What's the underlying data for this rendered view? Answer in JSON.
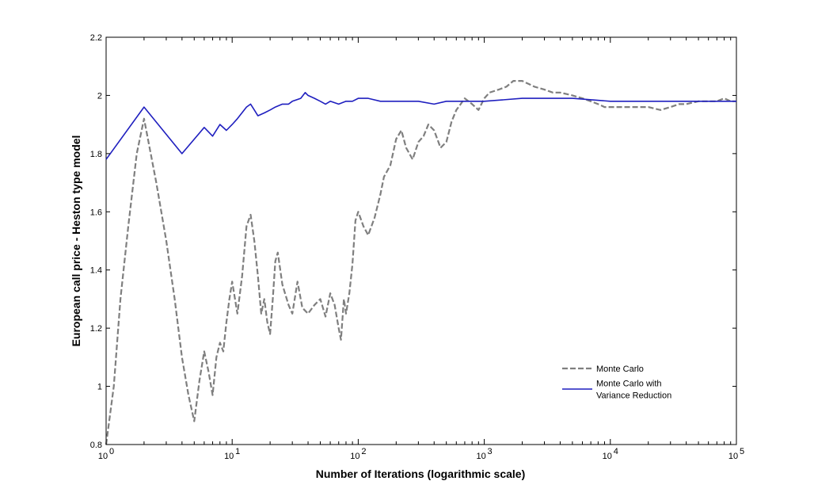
{
  "chart_data": {
    "type": "line",
    "title": "",
    "xlabel": "Number of Iterations (logarithmic scale)",
    "ylabel": "European call price - Heston type model",
    "xscale": "log",
    "xlim": [
      1,
      100000
    ],
    "ylim": [
      0.8,
      2.2
    ],
    "grid": false,
    "legend_position": "lower-right",
    "x_ticks": [
      {
        "value": 1,
        "base": "10",
        "exp": "0"
      },
      {
        "value": 10,
        "base": "10",
        "exp": "1"
      },
      {
        "value": 100,
        "base": "10",
        "exp": "2"
      },
      {
        "value": 1000,
        "base": "10",
        "exp": "3"
      },
      {
        "value": 10000,
        "base": "10",
        "exp": "4"
      },
      {
        "value": 100000,
        "base": "10",
        "exp": "5"
      }
    ],
    "y_ticks": [
      {
        "value": 0.8,
        "label": "0.8"
      },
      {
        "value": 1.0,
        "label": "1"
      },
      {
        "value": 1.2,
        "label": "1.2"
      },
      {
        "value": 1.4,
        "label": "1.4"
      },
      {
        "value": 1.6,
        "label": "1.6"
      },
      {
        "value": 1.8,
        "label": "1.8"
      },
      {
        "value": 2.0,
        "label": "2"
      },
      {
        "value": 2.2,
        "label": "2.2"
      }
    ],
    "series": [
      {
        "name": "Monte Carlo",
        "legend_lines": [
          "Monte Carlo"
        ],
        "color": "#7f7f7f",
        "style": "dashed",
        "points": [
          [
            1,
            0.8
          ],
          [
            1.15,
            1.0
          ],
          [
            1.3,
            1.3
          ],
          [
            1.5,
            1.55
          ],
          [
            1.75,
            1.8
          ],
          [
            2,
            1.92
          ],
          [
            2.5,
            1.7
          ],
          [
            3,
            1.5
          ],
          [
            3.5,
            1.3
          ],
          [
            4,
            1.1
          ],
          [
            4.5,
            0.97
          ],
          [
            5,
            0.88
          ],
          [
            5.5,
            1.02
          ],
          [
            6,
            1.12
          ],
          [
            6.5,
            1.05
          ],
          [
            7,
            0.97
          ],
          [
            7.5,
            1.1
          ],
          [
            8,
            1.15
          ],
          [
            8.5,
            1.12
          ],
          [
            9,
            1.22
          ],
          [
            9.5,
            1.3
          ],
          [
            10,
            1.36
          ],
          [
            11,
            1.25
          ],
          [
            12,
            1.38
          ],
          [
            13,
            1.55
          ],
          [
            14,
            1.59
          ],
          [
            15,
            1.5
          ],
          [
            16,
            1.38
          ],
          [
            17,
            1.25
          ],
          [
            18,
            1.3
          ],
          [
            19,
            1.22
          ],
          [
            20,
            1.18
          ],
          [
            21,
            1.3
          ],
          [
            22,
            1.43
          ],
          [
            23,
            1.46
          ],
          [
            25,
            1.35
          ],
          [
            28,
            1.28
          ],
          [
            30,
            1.25
          ],
          [
            33,
            1.36
          ],
          [
            36,
            1.27
          ],
          [
            40,
            1.25
          ],
          [
            45,
            1.28
          ],
          [
            50,
            1.3
          ],
          [
            55,
            1.24
          ],
          [
            60,
            1.32
          ],
          [
            65,
            1.28
          ],
          [
            70,
            1.2
          ],
          [
            73,
            1.16
          ],
          [
            77,
            1.3
          ],
          [
            80,
            1.25
          ],
          [
            85,
            1.32
          ],
          [
            90,
            1.42
          ],
          [
            95,
            1.57
          ],
          [
            100,
            1.6
          ],
          [
            110,
            1.55
          ],
          [
            120,
            1.52
          ],
          [
            135,
            1.58
          ],
          [
            150,
            1.66
          ],
          [
            160,
            1.72
          ],
          [
            180,
            1.76
          ],
          [
            200,
            1.85
          ],
          [
            220,
            1.88
          ],
          [
            240,
            1.82
          ],
          [
            270,
            1.78
          ],
          [
            300,
            1.84
          ],
          [
            330,
            1.86
          ],
          [
            360,
            1.9
          ],
          [
            400,
            1.88
          ],
          [
            450,
            1.82
          ],
          [
            500,
            1.84
          ],
          [
            550,
            1.91
          ],
          [
            600,
            1.95
          ],
          [
            650,
            1.97
          ],
          [
            700,
            1.99
          ],
          [
            800,
            1.97
          ],
          [
            900,
            1.95
          ],
          [
            1000,
            1.99
          ],
          [
            1100,
            2.01
          ],
          [
            1300,
            2.02
          ],
          [
            1500,
            2.03
          ],
          [
            1700,
            2.05
          ],
          [
            2000,
            2.05
          ],
          [
            2500,
            2.03
          ],
          [
            3000,
            2.02
          ],
          [
            3500,
            2.01
          ],
          [
            4000,
            2.01
          ],
          [
            5000,
            2.0
          ],
          [
            6000,
            1.99
          ],
          [
            7000,
            1.98
          ],
          [
            8000,
            1.97
          ],
          [
            9000,
            1.96
          ],
          [
            10000,
            1.96
          ],
          [
            12000,
            1.96
          ],
          [
            15000,
            1.96
          ],
          [
            20000,
            1.96
          ],
          [
            25000,
            1.95
          ],
          [
            30000,
            1.96
          ],
          [
            35000,
            1.97
          ],
          [
            40000,
            1.97
          ],
          [
            50000,
            1.98
          ],
          [
            60000,
            1.98
          ],
          [
            70000,
            1.98
          ],
          [
            80000,
            1.99
          ],
          [
            90000,
            1.98
          ],
          [
            100000,
            1.98
          ]
        ]
      },
      {
        "name": "Monte Carlo with Variance Reduction",
        "legend_lines": [
          "Monte Carlo with",
          "Variance Reduction"
        ],
        "color": "#1f1fbf",
        "style": "solid",
        "points": [
          [
            1,
            1.78
          ],
          [
            2,
            1.96
          ],
          [
            4,
            1.8
          ],
          [
            6,
            1.89
          ],
          [
            7,
            1.86
          ],
          [
            8,
            1.9
          ],
          [
            9,
            1.88
          ],
          [
            10,
            1.9
          ],
          [
            11,
            1.92
          ],
          [
            13,
            1.96
          ],
          [
            14,
            1.97
          ],
          [
            15,
            1.95
          ],
          [
            16,
            1.93
          ],
          [
            18,
            1.94
          ],
          [
            20,
            1.95
          ],
          [
            22,
            1.96
          ],
          [
            25,
            1.97
          ],
          [
            28,
            1.97
          ],
          [
            30,
            1.98
          ],
          [
            35,
            1.99
          ],
          [
            38,
            2.01
          ],
          [
            40,
            2.0
          ],
          [
            45,
            1.99
          ],
          [
            50,
            1.98
          ],
          [
            55,
            1.97
          ],
          [
            60,
            1.98
          ],
          [
            70,
            1.97
          ],
          [
            80,
            1.98
          ],
          [
            90,
            1.98
          ],
          [
            100,
            1.99
          ],
          [
            120,
            1.99
          ],
          [
            150,
            1.98
          ],
          [
            200,
            1.98
          ],
          [
            300,
            1.98
          ],
          [
            400,
            1.97
          ],
          [
            500,
            1.98
          ],
          [
            700,
            1.98
          ],
          [
            1000,
            1.98
          ],
          [
            2000,
            1.99
          ],
          [
            3000,
            1.99
          ],
          [
            5000,
            1.99
          ],
          [
            10000,
            1.98
          ],
          [
            30000,
            1.98
          ],
          [
            100000,
            1.98
          ]
        ]
      }
    ]
  }
}
